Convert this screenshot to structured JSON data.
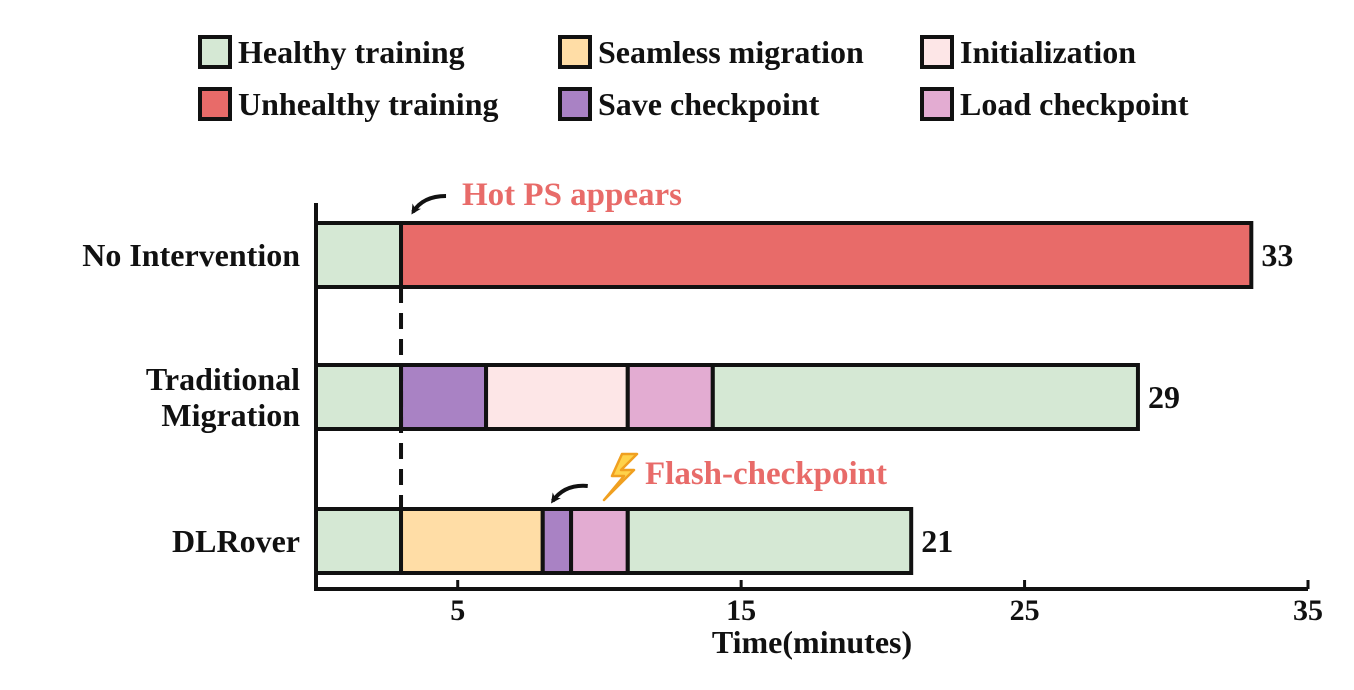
{
  "chart_data": {
    "type": "bar",
    "orientation": "horizontal",
    "stacked": true,
    "title": "",
    "xlabel": "Time(minutes)",
    "ylabel": "",
    "xlim": [
      0,
      35
    ],
    "xticks": [
      5,
      15,
      25,
      35
    ],
    "grid": false,
    "legend_placement": "top",
    "legend": [
      {
        "key": "healthy",
        "label": "Healthy training",
        "color": "#d5e8d4"
      },
      {
        "key": "migration",
        "label": "Seamless migration",
        "color": "#ffdda6"
      },
      {
        "key": "init",
        "label": "Initialization",
        "color": "#fde6e7"
      },
      {
        "key": "unhealthy",
        "label": "Unhealthy training",
        "color": "#e86b69"
      },
      {
        "key": "save",
        "label": "Save checkpoint",
        "color": "#a982c4"
      },
      {
        "key": "load",
        "label": "Load checkpoint",
        "color": "#e3acd2"
      }
    ],
    "categories": [
      {
        "label_lines": [
          "No Intervention"
        ],
        "total": 33,
        "segments": [
          {
            "key": "healthy",
            "start": 0,
            "end": 3
          },
          {
            "key": "unhealthy",
            "start": 3,
            "end": 33
          }
        ]
      },
      {
        "label_lines": [
          "Traditional",
          "Migration"
        ],
        "total": 29,
        "segments": [
          {
            "key": "healthy",
            "start": 0,
            "end": 3
          },
          {
            "key": "save",
            "start": 3,
            "end": 6
          },
          {
            "key": "init",
            "start": 6,
            "end": 11
          },
          {
            "key": "load",
            "start": 11,
            "end": 14
          },
          {
            "key": "healthy",
            "start": 14,
            "end": 29
          }
        ]
      },
      {
        "label_lines": [
          "DLRover"
        ],
        "total": 21,
        "segments": [
          {
            "key": "healthy",
            "start": 0,
            "end": 3
          },
          {
            "key": "migration",
            "start": 3,
            "end": 8
          },
          {
            "key": "save",
            "start": 8,
            "end": 9
          },
          {
            "key": "load",
            "start": 9,
            "end": 11
          },
          {
            "key": "healthy",
            "start": 11,
            "end": 21
          }
        ]
      }
    ],
    "marker_line_x": 3,
    "annotations": [
      {
        "text": "Hot PS appears",
        "points_to_x": 3,
        "color": "#e86b69"
      },
      {
        "text": "Flash-checkpoint",
        "points_to_x": 8,
        "color": "#e86b69",
        "icon": "lightning-icon"
      }
    ]
  }
}
